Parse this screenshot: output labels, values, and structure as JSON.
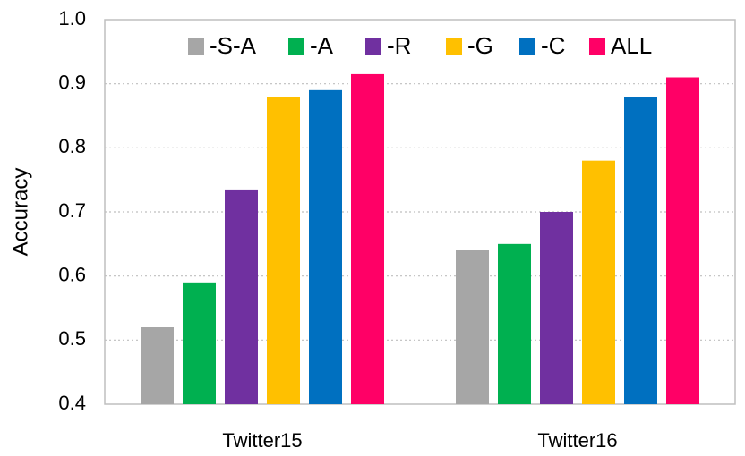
{
  "chart_data": {
    "type": "bar",
    "title": "",
    "xlabel": "",
    "ylabel": "Accuracy",
    "ylim": [
      0.4,
      1.0
    ],
    "yticks": [
      "0.4",
      "0.5",
      "0.6",
      "0.7",
      "0.8",
      "0.9",
      "1.0"
    ],
    "ytick_values": [
      0.4,
      0.5,
      0.6,
      0.7,
      0.8,
      0.9,
      1.0
    ],
    "grid": "horizontal-dotted",
    "legend_position": "top",
    "categories": [
      "Twitter15",
      "Twitter16"
    ],
    "series": [
      {
        "name": "-S-A",
        "color": "#a6a6a6",
        "values": [
          0.52,
          0.64
        ]
      },
      {
        "name": "-A",
        "color": "#00b050",
        "values": [
          0.59,
          0.65
        ]
      },
      {
        "name": "-R",
        "color": "#7030a0",
        "values": [
          0.735,
          0.7
        ]
      },
      {
        "name": "-G",
        "color": "#ffc000",
        "values": [
          0.88,
          0.78
        ]
      },
      {
        "name": "-C",
        "color": "#0070c0",
        "values": [
          0.89,
          0.88
        ]
      },
      {
        "name": "ALL",
        "color": "#ff0066",
        "values": [
          0.915,
          0.91
        ]
      }
    ]
  }
}
